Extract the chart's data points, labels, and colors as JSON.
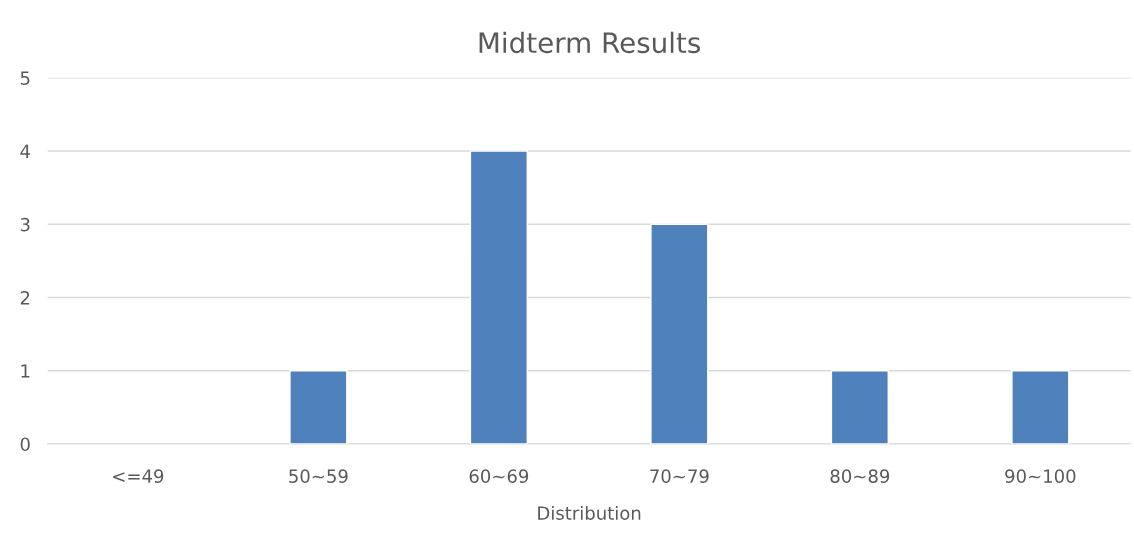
{
  "chart_data": {
    "type": "bar",
    "title": "Midterm Results",
    "xlabel": "Distribution",
    "categories": [
      "<=49",
      "50~59",
      "60~69",
      "70~79",
      "80~89",
      "90~100"
    ],
    "values": [
      null,
      1,
      4,
      3,
      1,
      1
    ],
    "color": "#4f81bd",
    "ylim": [
      0,
      5
    ],
    "yticks": [
      0,
      1,
      2,
      3,
      4,
      5
    ],
    "grid": "y"
  }
}
